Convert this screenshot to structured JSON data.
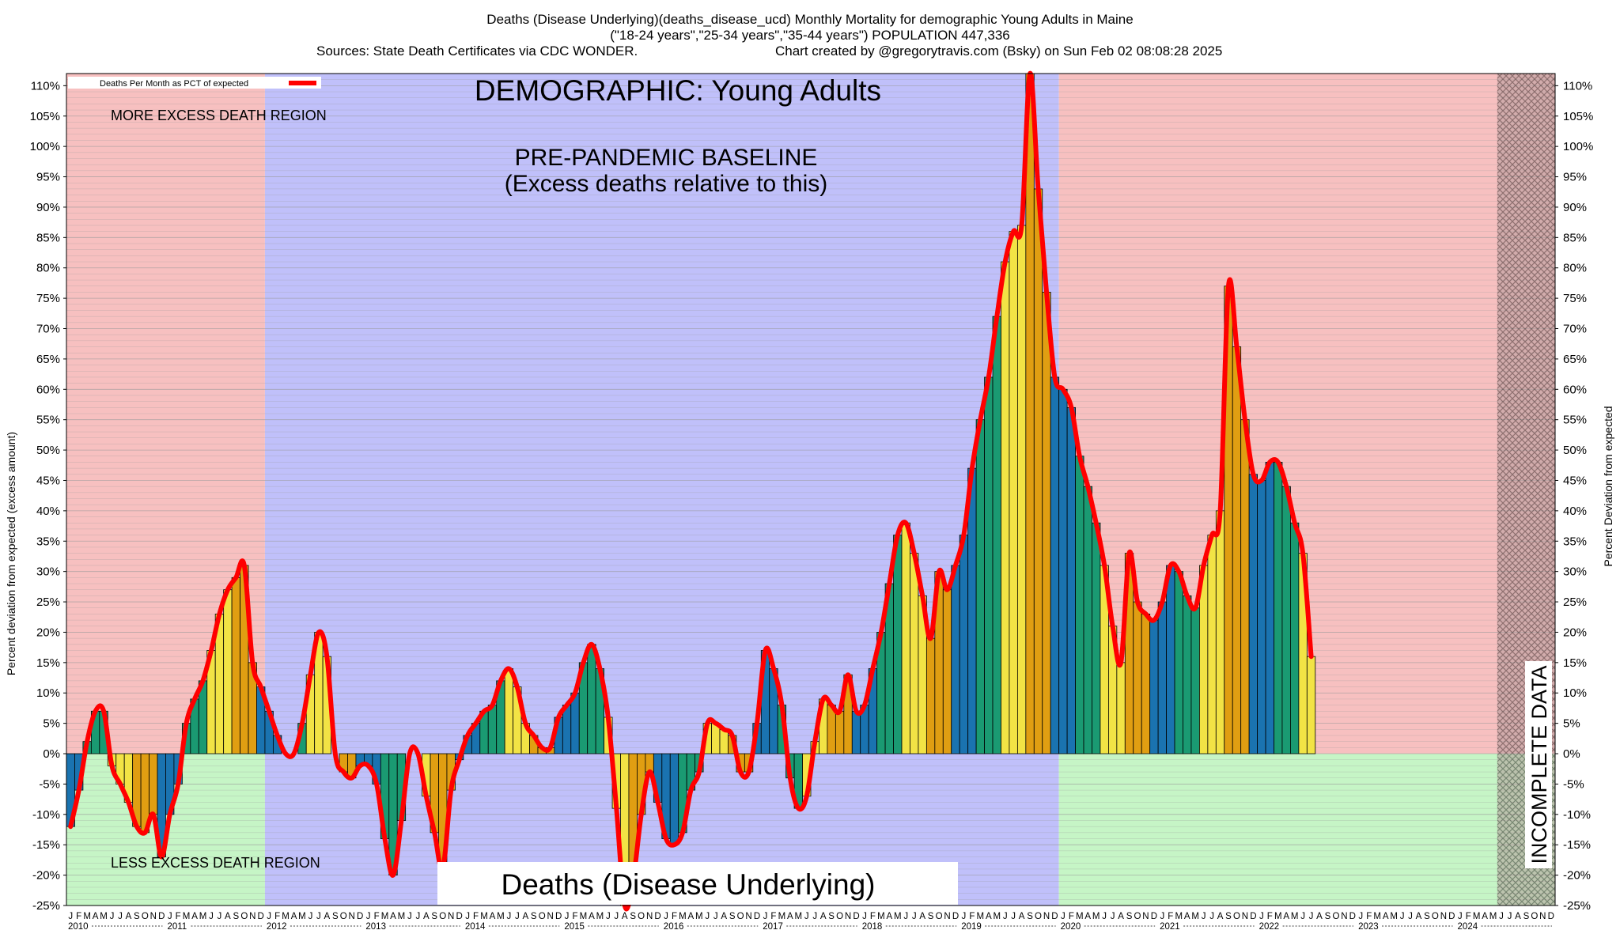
{
  "header": {
    "line1": "Deaths (Disease Underlying)(deaths_disease_ucd) Monthly Mortality for demographic Young Adults in Maine",
    "line2": "(\"18-24 years\",\"25-34 years\",\"35-44 years\") POPULATION 447,336",
    "line3_left": "Sources: State Death Certificates via CDC WONDER.",
    "line3_right": "Chart created by @gregorytravis.com (Bsky) on Sun Feb 02 08:08:28 2025"
  },
  "annotations": {
    "demographic": "DEMOGRAPHIC: Young Adults",
    "baseline_l1": "PRE-PANDEMIC BASELINE",
    "baseline_l2": "(Excess deaths relative to this)",
    "more_region": "MORE EXCESS DEATH REGION",
    "less_region": "LESS EXCESS DEATH REGION",
    "bottom_label": "Deaths (Disease Underlying)",
    "incomplete": "INCOMPLETE DATA"
  },
  "legend": {
    "label": "Deaths Per Month as PCT of expected",
    "color": "#ff0000"
  },
  "colors": {
    "excess_region": "#f7c0c0",
    "less_region": "#c6f5c6",
    "baseline_region": "#c0c0fa",
    "season_colors": [
      "#1a73b0",
      "#1a9a72",
      "#f2e345",
      "#e09e12"
    ],
    "line": "#ff0000"
  },
  "chart_data": {
    "type": "bar",
    "y_unit": "Percent deviation from expected",
    "ylabel_left": "Percent deviation from expected (excess amount)",
    "ylabel_right": "Percent Deviation from expected",
    "ylim": [
      -25,
      112
    ],
    "yticks": [
      "-25%",
      "-20%",
      "-15%",
      "-10%",
      "-5%",
      "0%",
      "5%",
      "10%",
      "15%",
      "20%",
      "25%",
      "30%",
      "35%",
      "40%",
      "45%",
      "50%",
      "55%",
      "60%",
      "65%",
      "70%",
      "75%",
      "80%",
      "85%",
      "90%",
      "95%",
      "100%",
      "105%",
      "110%"
    ],
    "month_letters": [
      "J",
      "F",
      "M",
      "A",
      "M",
      "J",
      "J",
      "A",
      "S",
      "O",
      "N",
      "D"
    ],
    "years": [
      "2010",
      "2011",
      "2012",
      "2013",
      "2014",
      "2015",
      "2016",
      "2017",
      "2018",
      "2019",
      "2020",
      "2021",
      "2022",
      "2023",
      "2024"
    ],
    "start": "2010-01",
    "end": "2024-12",
    "baseline_period": [
      "2012-01",
      "2019-12"
    ],
    "incomplete_from": "2024-06",
    "grid": true,
    "legend_position": "top-left",
    "series": [
      {
        "name": "Deaths Per Month as PCT of expected",
        "values": [
          -12,
          -6,
          2,
          7,
          7,
          -2,
          -5,
          -8,
          -12,
          -13,
          -10,
          -17,
          -10,
          -5,
          5,
          9,
          12,
          17,
          23,
          27,
          29,
          31,
          15,
          11,
          7,
          3,
          0,
          0,
          5,
          13,
          20,
          16,
          0,
          -3,
          -4,
          -2,
          -2,
          -5,
          -14,
          -20,
          -11,
          0,
          0,
          -7,
          -13,
          -19,
          -6,
          -1,
          3,
          5,
          7,
          8,
          12,
          14,
          11,
          5,
          3,
          1,
          1,
          6,
          8,
          10,
          15,
          18,
          14,
          6,
          -9,
          -25,
          -21,
          -10,
          -3,
          -8,
          -14,
          -15,
          -13,
          -6,
          -3,
          5,
          5,
          4,
          3,
          -3,
          -3,
          5,
          17,
          14,
          8,
          -4,
          -9,
          -7,
          2,
          9,
          8,
          7,
          13,
          7,
          8,
          14,
          20,
          28,
          36,
          38,
          33,
          26,
          19,
          30,
          27,
          31,
          36,
          47,
          55,
          62,
          72,
          81,
          86,
          87,
          112,
          93,
          76,
          62,
          60,
          57,
          49,
          44,
          38,
          31,
          21,
          15,
          33,
          25,
          23,
          22,
          25,
          31,
          30,
          26,
          24,
          31,
          36,
          40,
          77,
          67,
          55,
          46,
          45,
          48,
          48,
          44,
          38,
          33,
          16
        ]
      }
    ]
  }
}
